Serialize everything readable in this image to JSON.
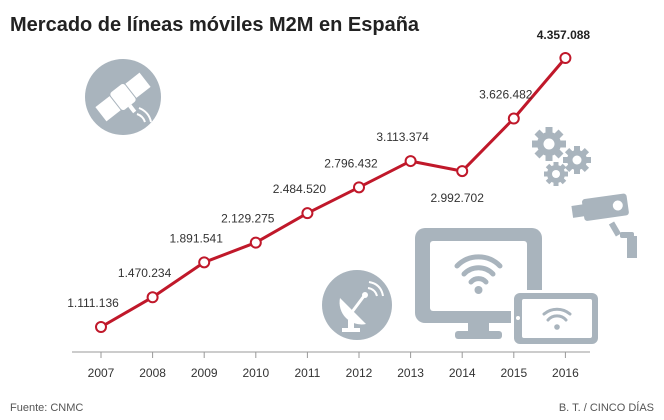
{
  "chart_data": {
    "type": "line",
    "title": "Mercado de líneas móviles M2M en España",
    "categories": [
      "2007",
      "2008",
      "2009",
      "2010",
      "2011",
      "2012",
      "2013",
      "2014",
      "2015",
      "2016"
    ],
    "values": [
      1111136,
      1470234,
      1891541,
      2129275,
      2484520,
      2796432,
      3113374,
      2992702,
      3626482,
      4357088
    ],
    "value_labels": [
      "1.111.136",
      "1.470.234",
      "1.891.541",
      "2.129.275",
      "2.484.520",
      "2.796.432",
      "3.113.374",
      "2.992.702",
      "3.626.482",
      "4.357.088"
    ],
    "xlabel": "",
    "ylabel": "",
    "grid": false,
    "legend": "none",
    "line_color": "#c0182a"
  },
  "footer": {
    "source": "Fuente: CNMC",
    "credit": "B. T. / CINCO DÍAS"
  },
  "icons": [
    "satellite-icon",
    "gears-icon",
    "security-camera-icon",
    "wifi-monitor-icon",
    "wifi-tablet-icon",
    "satellite-dish-icon"
  ],
  "colors": {
    "icon_gray": "#a9b4bd",
    "icon_white": "#ffffff",
    "axis": "#999999"
  }
}
